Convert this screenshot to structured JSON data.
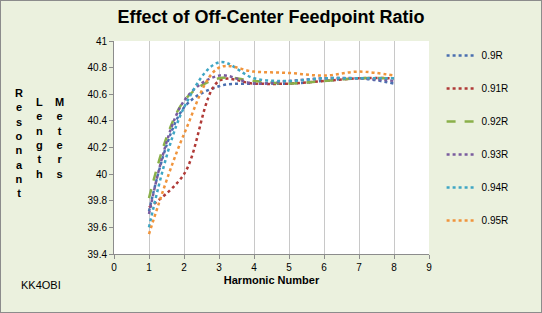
{
  "chart_data": {
    "type": "line",
    "title": "Effect of Off-Center Feedpoint Ratio",
    "x_label": "Harmonic Number",
    "y_label": "Resonant Length Meters",
    "annotations": [
      "KK4OBI"
    ],
    "x": [
      1,
      2,
      3,
      4,
      5,
      6,
      7,
      8
    ],
    "series": [
      {
        "name": "0.9R",
        "color": "#4a6fb0",
        "line_style": "dot",
        "values": [
          39.72,
          40.5,
          40.66,
          40.68,
          40.68,
          40.7,
          40.72,
          40.68
        ]
      },
      {
        "name": "0.91R",
        "color": "#b03a37",
        "line_style": "dot",
        "values": [
          39.75,
          40.0,
          40.7,
          40.68,
          40.68,
          40.7,
          40.72,
          40.72
        ]
      },
      {
        "name": "0.92R",
        "color": "#8ab04a",
        "line_style": "dash",
        "values": [
          39.82,
          40.55,
          40.72,
          40.7,
          40.68,
          40.7,
          40.72,
          40.72
        ]
      },
      {
        "name": "0.93R",
        "color": "#7a5c9e",
        "line_style": "dot",
        "values": [
          39.7,
          40.55,
          40.74,
          40.68,
          40.7,
          40.72,
          40.72,
          40.7
        ]
      },
      {
        "name": "0.94R",
        "color": "#3fa6c4",
        "line_style": "dot",
        "values": [
          39.6,
          40.5,
          40.84,
          40.72,
          40.7,
          40.72,
          40.72,
          40.72
        ]
      },
      {
        "name": "0.95R",
        "color": "#f0943c",
        "line_style": "dot",
        "values": [
          39.55,
          40.3,
          40.8,
          40.77,
          40.76,
          40.74,
          40.77,
          40.74
        ]
      }
    ],
    "xlim": [
      0,
      9
    ],
    "xticks": [
      0,
      1,
      2,
      3,
      4,
      5,
      6,
      7,
      8,
      9
    ],
    "ylim": [
      39.4,
      41
    ],
    "yticks": [
      39.4,
      39.6,
      39.8,
      40,
      40.2,
      40.4,
      40.6,
      40.8,
      41
    ],
    "grid": "x",
    "legend": "right"
  }
}
